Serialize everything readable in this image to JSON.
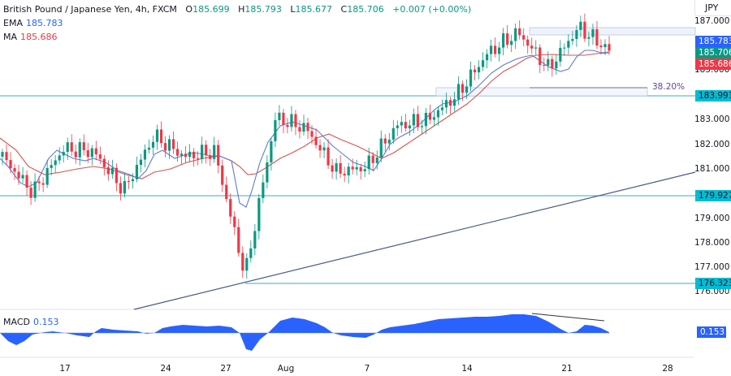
{
  "header": {
    "symbol": "British Pound / Japanese Yen, 4h, FXCM",
    "open_label": "O",
    "open": "185.699",
    "high_label": "H",
    "high": "185.793",
    "low_label": "L",
    "low": "185.677",
    "close_label": "C",
    "close": "185.706",
    "change": "+0.007 (+0.00%)",
    "ema_label": "EMA",
    "ema": "185.783",
    "ma_label": "MA",
    "ma": "185.686"
  },
  "price_axis": {
    "currency": "JPY",
    "ticks": [
      "187.000",
      "185.000",
      "183.000",
      "182.000",
      "181.000",
      "179.000",
      "178.000",
      "177.000",
      "176.000"
    ],
    "tags": {
      "ema": {
        "value": "185.783",
        "color": "#2962ff"
      },
      "close": {
        "value": "185.706",
        "color": "#089981"
      },
      "ma": {
        "value": "185.686",
        "color": "#f23645"
      },
      "level1": {
        "value": "183.991",
        "color": "#00bcd4"
      },
      "level2": {
        "value": "179.927",
        "color": "#00bcd4"
      },
      "level3": {
        "value": "176.323",
        "color": "#00bcd4"
      }
    }
  },
  "fib_label": "38.20%",
  "macd": {
    "label": "MACD",
    "value": "0.153",
    "tag": "0.153",
    "color": "#2962ff"
  },
  "time_axis": [
    "17",
    "24",
    "27",
    "Aug",
    "7",
    "14",
    "21",
    "28"
  ],
  "colors": {
    "up": "#089981",
    "down": "#f23645",
    "ema": "#5b7bd5",
    "ma": "#d9534f",
    "level": "#5fbfc9",
    "trend": "#4a5b8c"
  },
  "chart_data": {
    "type": "candlestick",
    "title": "British Pound / Japanese Yen, 4h, FXCM",
    "ylabel": "JPY",
    "ylim": [
      175.7,
      187.4
    ],
    "x_ticks": [
      "17",
      "24",
      "27",
      "Aug",
      "7",
      "14",
      "21",
      "28"
    ],
    "horizontal_levels": [
      183.991,
      179.927,
      176.323
    ],
    "fib_level": {
      "label": "38.20%",
      "value": 184.3
    },
    "trendline": {
      "from": [
        160,
        175.8
      ],
      "to": [
        855,
        181.0
      ]
    },
    "series": [
      {
        "name": "EMA",
        "last": 185.783
      },
      {
        "name": "MA",
        "last": 185.686
      },
      {
        "name": "Close",
        "last": 185.706
      },
      {
        "name": "MACD",
        "last": 0.153
      }
    ],
    "approx_close_path": [
      {
        "x": "Jul 14",
        "y": 181.6
      },
      {
        "x": "Jul 15",
        "y": 180.2
      },
      {
        "x": "Jul 17",
        "y": 181.9
      },
      {
        "x": "Jul 19",
        "y": 181.8
      },
      {
        "x": "Jul 21",
        "y": 180.3
      },
      {
        "x": "Jul 24",
        "y": 182.4
      },
      {
        "x": "Jul 25",
        "y": 181.6
      },
      {
        "x": "Jul 26",
        "y": 181.8
      },
      {
        "x": "Jul 28",
        "y": 177.0
      },
      {
        "x": "Jul 31",
        "y": 183.1
      },
      {
        "x": "Aug 2",
        "y": 182.7
      },
      {
        "x": "Aug 4",
        "y": 181.0
      },
      {
        "x": "Aug 7",
        "y": 181.2
      },
      {
        "x": "Aug 9",
        "y": 182.8
      },
      {
        "x": "Aug 11",
        "y": 183.0
      },
      {
        "x": "Aug 14",
        "y": 184.0
      },
      {
        "x": "Aug 16",
        "y": 185.6
      },
      {
        "x": "Aug 18",
        "y": 186.4
      },
      {
        "x": "Aug 19",
        "y": 185.0
      },
      {
        "x": "Aug 21",
        "y": 186.6
      },
      {
        "x": "Aug 23",
        "y": 185.7
      }
    ]
  }
}
